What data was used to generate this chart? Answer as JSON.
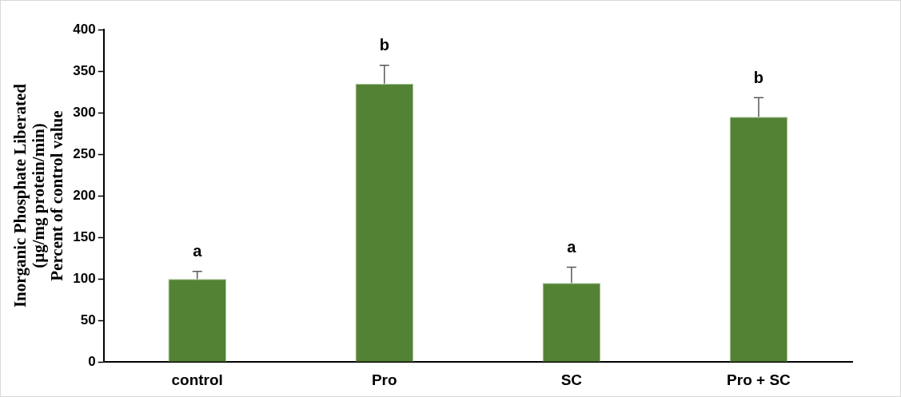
{
  "chart_data": {
    "type": "bar",
    "ylabel": "Inorganic Phosphate Liberated\n(µg/mg protein/min)\nPercent of control value",
    "categories": [
      "control",
      "Pro",
      "SC",
      "Pro + SC"
    ],
    "values": [
      100,
      335,
      95,
      295
    ],
    "errors": [
      [
        100,
        109
      ],
      [
        335,
        357
      ],
      [
        95,
        114
      ],
      [
        295,
        318
      ]
    ],
    "color": "#548235",
    "ylim": [
      0,
      400
    ],
    "yticks": [
      0,
      50,
      100,
      150,
      200,
      250,
      300,
      350,
      400
    ],
    "grid": false,
    "legend": false,
    "annotations": [
      {
        "text": "a",
        "x": "control",
        "y": 109
      },
      {
        "text": "b",
        "x": "Pro",
        "y": 357
      },
      {
        "text": "a",
        "x": "SC",
        "y": 114
      },
      {
        "text": "b",
        "x": "Pro + SC",
        "y": 318
      }
    ]
  }
}
